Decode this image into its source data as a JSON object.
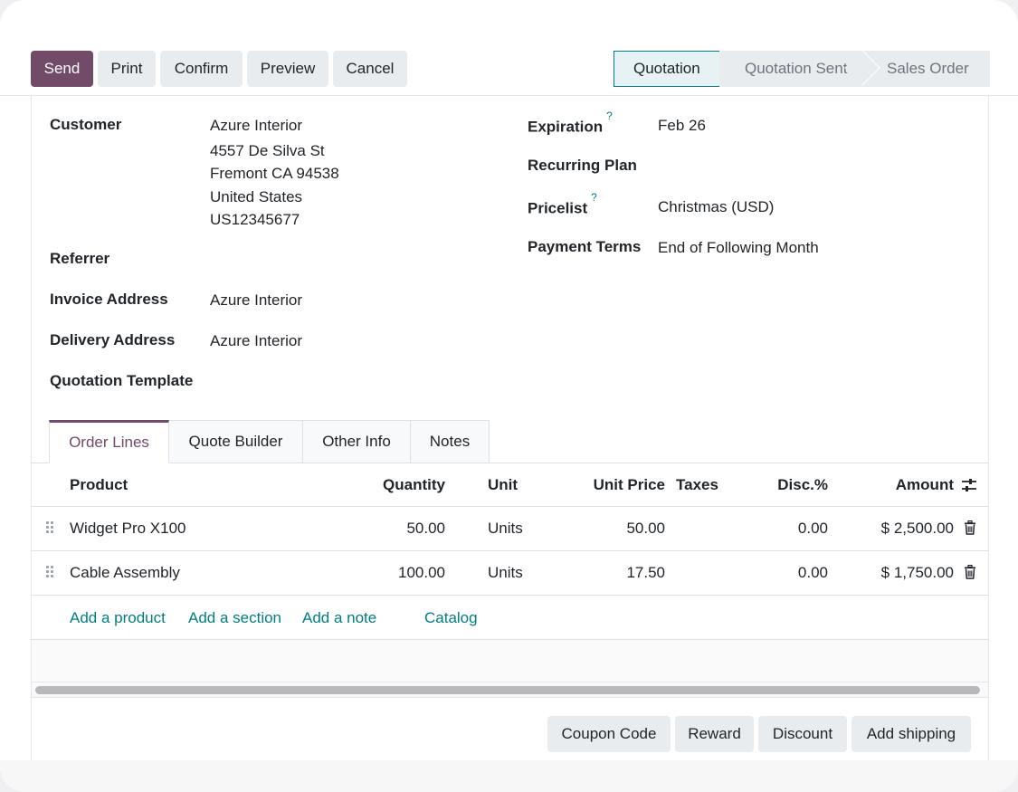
{
  "toolbar": {
    "send": "Send",
    "print": "Print",
    "confirm": "Confirm",
    "preview": "Preview",
    "cancel": "Cancel"
  },
  "statusbar": {
    "stages": [
      "Quotation",
      "Quotation Sent",
      "Sales Order"
    ],
    "active": "Quotation"
  },
  "form": {
    "customer_label": "Customer",
    "customer_name": "Azure Interior",
    "customer_street": "4557 De Silva St",
    "customer_city": "Fremont CA 94538",
    "customer_country": "United States",
    "customer_vat": "US12345677",
    "referrer_label": "Referrer",
    "invoice_label": "Invoice Address",
    "invoice_value": "Azure Interior",
    "delivery_label": "Delivery Address",
    "delivery_value": "Azure Interior",
    "template_label": "Quotation Template",
    "expiration_label": "Expiration",
    "expiration_value": "Feb 26",
    "recurring_label": "Recurring Plan",
    "pricelist_label": "Pricelist",
    "pricelist_value": "Christmas (USD)",
    "payment_label": "Payment Terms",
    "payment_value": "End of Following Month",
    "help_mark": "?"
  },
  "tabs": [
    "Order Lines",
    "Quote Builder",
    "Other Info",
    "Notes"
  ],
  "table": {
    "headers": {
      "product": "Product",
      "quantity": "Quantity",
      "unit": "Unit",
      "unit_price": "Unit Price",
      "taxes": "Taxes",
      "discount": "Disc.%",
      "amount": "Amount"
    },
    "rows": [
      {
        "product": "Widget Pro X100",
        "quantity": "50.00",
        "unit": "Units",
        "unit_price": "50.00",
        "taxes": "",
        "discount": "0.00",
        "amount": "$ 2,500.00"
      },
      {
        "product": "Cable Assembly",
        "quantity": "100.00",
        "unit": "Units",
        "unit_price": "17.50",
        "taxes": "",
        "discount": "0.00",
        "amount": "$ 1,750.00"
      }
    ],
    "add_product": "Add a product",
    "add_section": "Add a section",
    "add_note": "Add a note",
    "catalog": "Catalog"
  },
  "footer_buttons": {
    "coupon": "Coupon Code",
    "reward": "Reward",
    "discount": "Discount",
    "shipping": "Add shipping"
  },
  "colors": {
    "primary": "#714b67",
    "accent": "#017e84"
  },
  "icons": [
    "drag-handle-icon",
    "trash-icon",
    "optional-columns-icon"
  ]
}
